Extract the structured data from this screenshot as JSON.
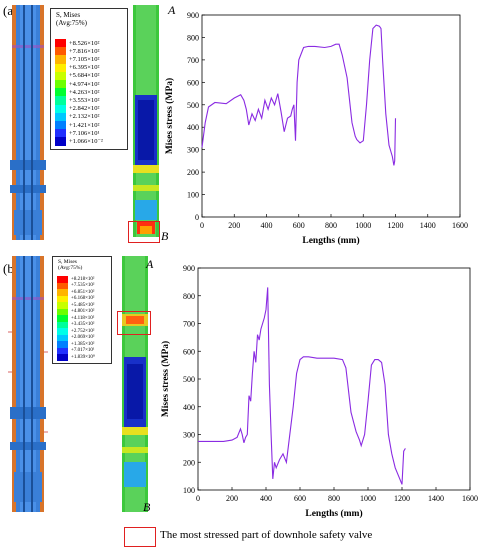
{
  "panels": [
    {
      "label": "(a)",
      "legend": {
        "title": [
          "S, Mises",
          "(Avg:75%)"
        ],
        "entries": [
          "+8.526×10²",
          "+7.816×10²",
          "+7.105×10²",
          "+6.395×10²",
          "+5.684×10²",
          "+4.974×10²",
          "+4.263×10²",
          "+3.553×10²",
          "+2.842×10²",
          "+2.132×10²",
          "+1.421×10²",
          "+7.106×10¹",
          "+1.066×10⁻²"
        ],
        "colors": [
          "#ff0000",
          "#ff5a00",
          "#ffb400",
          "#ffee00",
          "#c8ff00",
          "#6cff00",
          "#00ff30",
          "#00ff9c",
          "#00ffe8",
          "#00c8ff",
          "#0080ff",
          "#2030ff",
          "#0000c8"
        ]
      },
      "marker_top": "A",
      "marker_bottom": "B"
    },
    {
      "label": "(b)",
      "legend": {
        "title": [
          "S, Mises",
          "(Avg:75%)"
        ],
        "entries": [
          "+8.218×10²",
          "+7.535×10²",
          "+6.851×10²",
          "+6.168×10²",
          "+5.485×10²",
          "+4.801×10²",
          "+4.118×10²",
          "+3.435×10²",
          "+2.752×10²",
          "+2.069×10²",
          "+1.385×10²",
          "+7.017×10¹",
          "+1.839×10⁰"
        ],
        "colors": [
          "#ff0000",
          "#ff5a00",
          "#ffb400",
          "#ffee00",
          "#c8ff00",
          "#6cff00",
          "#00ff30",
          "#00ff9c",
          "#00ffe8",
          "#00c8ff",
          "#0080ff",
          "#2030ff",
          "#0000c8"
        ]
      },
      "marker_top": "A",
      "marker_bottom": "B"
    }
  ],
  "chart_data": [
    {
      "type": "line",
      "xlabel": "Lengths  (mm)",
      "ylabel": "Mises stress (MPa)",
      "xlim": [
        0,
        1600
      ],
      "ylim": [
        0,
        900
      ],
      "xticks": [
        0,
        200,
        400,
        600,
        800,
        1000,
        1200,
        1400,
        1600
      ],
      "yticks": [
        0,
        100,
        200,
        300,
        400,
        500,
        600,
        700,
        800,
        900
      ],
      "color": "#8a2be2",
      "x": [
        0,
        20,
        40,
        80,
        150,
        200,
        240,
        260,
        275,
        290,
        310,
        330,
        350,
        370,
        390,
        410,
        430,
        450,
        470,
        490,
        510,
        530,
        550,
        560,
        570,
        580,
        590,
        600,
        630,
        660,
        700,
        760,
        800,
        830,
        850,
        870,
        900,
        930,
        950,
        960,
        980,
        1000,
        1020,
        1040,
        1060,
        1080,
        1100,
        1110,
        1120,
        1140,
        1160,
        1180,
        1190,
        1195,
        1200
      ],
      "y": [
        310,
        420,
        490,
        510,
        505,
        530,
        545,
        520,
        480,
        410,
        460,
        430,
        480,
        440,
        520,
        480,
        530,
        500,
        550,
        470,
        380,
        440,
        450,
        480,
        500,
        340,
        600,
        700,
        755,
        760,
        760,
        755,
        760,
        770,
        770,
        720,
        620,
        420,
        360,
        345,
        330,
        340,
        500,
        700,
        840,
        855,
        850,
        840,
        700,
        460,
        320,
        270,
        230,
        250,
        440
      ]
    },
    {
      "type": "line",
      "xlabel": "Lengths  (mm)",
      "ylabel": "Mises stress (MPa)",
      "xlim": [
        0,
        1600
      ],
      "ylim": [
        100,
        900
      ],
      "xticks": [
        0,
        200,
        400,
        600,
        800,
        1000,
        1200,
        1400,
        1600
      ],
      "yticks": [
        100,
        200,
        300,
        400,
        500,
        600,
        700,
        800,
        900
      ],
      "color": "#8a2be2",
      "x": [
        0,
        50,
        100,
        150,
        200,
        230,
        250,
        260,
        270,
        280,
        290,
        300,
        310,
        320,
        330,
        340,
        350,
        360,
        370,
        380,
        390,
        400,
        410,
        420,
        430,
        440,
        450,
        460,
        480,
        500,
        520,
        540,
        560,
        580,
        600,
        620,
        650,
        700,
        750,
        800,
        850,
        870,
        900,
        930,
        950,
        960,
        980,
        1000,
        1020,
        1040,
        1060,
        1080,
        1100,
        1120,
        1140,
        1160,
        1180,
        1200,
        1210,
        1220
      ],
      "y": [
        275,
        275,
        275,
        275,
        280,
        290,
        320,
        300,
        270,
        290,
        300,
        440,
        420,
        520,
        600,
        560,
        660,
        640,
        680,
        700,
        720,
        750,
        830,
        480,
        300,
        140,
        200,
        180,
        210,
        230,
        200,
        300,
        400,
        520,
        570,
        580,
        580,
        575,
        575,
        575,
        570,
        540,
        380,
        310,
        280,
        260,
        300,
        420,
        550,
        570,
        570,
        560,
        480,
        300,
        230,
        180,
        150,
        120,
        240,
        250
      ]
    }
  ],
  "legend_footer": {
    "text": "The most stressed part of downhole safety valve",
    "color": "#e02020"
  }
}
